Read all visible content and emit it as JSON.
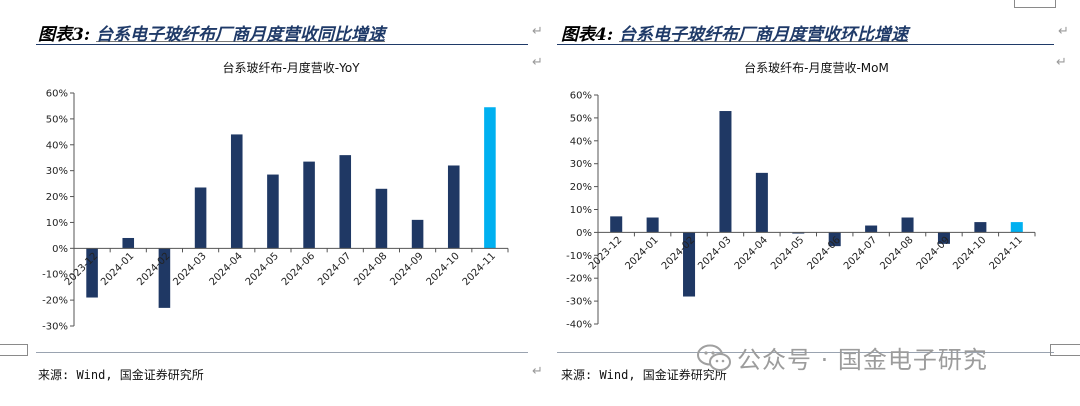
{
  "left": {
    "figure_label": "图表3:",
    "figure_title": "台系电子玻纤布厂商月度营收同比增速",
    "source": "来源: Wind, 国金证券研究所"
  },
  "right": {
    "figure_label": "图表4:",
    "figure_title": "台系电子玻纤布厂商月度营收环比增速",
    "source": "来源: Wind, 国金证券研究所"
  },
  "watermark": {
    "text": "公众号 · 国金电子研究",
    "icon": "wechat-icon"
  },
  "colors": {
    "navy": "#1f3864",
    "highlight": "#00b0f0",
    "title_accent": "#1f3a68"
  },
  "chart_data": [
    {
      "type": "bar",
      "title": "台系玻纤布-月度营收-YoY",
      "categories": [
        "2023-12",
        "2024-01",
        "2024-02",
        "2024-03",
        "2024-04",
        "2024-05",
        "2024-06",
        "2024-07",
        "2024-08",
        "2024-09",
        "2024-10",
        "2024-11"
      ],
      "values": [
        -19,
        4,
        -23,
        23.5,
        44,
        28.5,
        33.5,
        36,
        23,
        11,
        32,
        54.5
      ],
      "highlight_last": true,
      "ylim": [
        -30,
        60
      ],
      "yticks": [
        -30,
        -20,
        -10,
        0,
        10,
        20,
        30,
        40,
        50,
        60
      ],
      "ytick_labels": [
        "-30%",
        "-20%",
        "-10%",
        "0%",
        "10%",
        "20%",
        "30%",
        "40%",
        "50%",
        "60%"
      ],
      "xlabel": "",
      "ylabel": "",
      "grid": false,
      "legend": "none"
    },
    {
      "type": "bar",
      "title": "台系玻纤布-月度营收-MoM",
      "categories": [
        "2023-12",
        "2024-01",
        "2024-02",
        "2024-03",
        "2024-04",
        "2024-05",
        "2024-06",
        "2024-07",
        "2024-08",
        "2024-09",
        "2024-10",
        "2024-11"
      ],
      "values": [
        7,
        6.5,
        -28,
        53,
        26,
        -0.5,
        -6,
        3,
        6.5,
        -5,
        4.5,
        4.5
      ],
      "highlight_last": true,
      "ylim": [
        -40,
        60
      ],
      "yticks": [
        -40,
        -30,
        -20,
        -10,
        0,
        10,
        20,
        30,
        40,
        50,
        60
      ],
      "ytick_labels": [
        "-40%",
        "-30%",
        "-20%",
        "-10%",
        "0%",
        "10%",
        "20%",
        "30%",
        "40%",
        "50%",
        "60%"
      ],
      "xlabel": "",
      "ylabel": "",
      "grid": false,
      "legend": "none"
    }
  ]
}
